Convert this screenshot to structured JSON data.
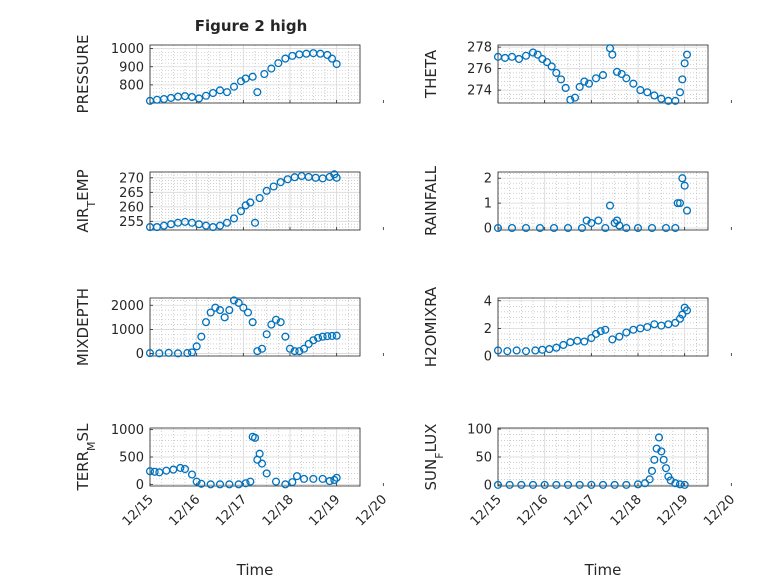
{
  "figure_title": "Figure 2 high",
  "colors": {
    "marker": "#0072BD",
    "axis": "#262626",
    "grid": "#d9d9d9",
    "minor_grid": "#b0b0b0"
  },
  "chart_data": [
    {
      "type": "scatter",
      "marker": "open-circle",
      "title": "Figure 2 high",
      "ylabel": "PRESSURE",
      "xlabel": "",
      "xlim": [
        "12/15",
        "12/19.5"
      ],
      "ylim": [
        700,
        1020
      ],
      "yticks": [
        800,
        900,
        1000
      ],
      "xticks": [
        "12/15",
        "12/16",
        "12/17",
        "12/18",
        "12/19",
        "12/20"
      ],
      "x_domain_days": [
        0,
        4.5
      ],
      "show_xticklabels": false,
      "grid": true,
      "minor_grid": true,
      "series": [
        {
          "x": [
            0,
            0.15,
            0.3,
            0.45,
            0.6,
            0.75,
            0.9,
            1.05,
            1.2,
            1.35,
            1.5,
            1.65,
            1.8,
            1.95,
            2.05,
            2.2,
            2.3,
            2.45,
            2.6,
            2.75,
            2.9,
            3.05,
            3.2,
            3.35,
            3.5,
            3.65,
            3.8,
            3.9,
            4.0
          ],
          "y": [
            712,
            718,
            722,
            728,
            735,
            738,
            733,
            725,
            740,
            755,
            770,
            760,
            790,
            820,
            835,
            845,
            760,
            860,
            890,
            920,
            945,
            960,
            968,
            972,
            975,
            972,
            965,
            945,
            915
          ]
        }
      ]
    },
    {
      "type": "scatter",
      "marker": "open-circle",
      "ylabel": "THETA",
      "xlabel": "",
      "xlim": [
        "12/15",
        "12/19.5"
      ],
      "ylim": [
        272.8,
        278.2
      ],
      "yticks": [
        274,
        276,
        278
      ],
      "xticks": [
        "12/15",
        "12/16",
        "12/17",
        "12/18",
        "12/19",
        "12/20"
      ],
      "x_domain_days": [
        0,
        4.5
      ],
      "show_xticklabels": false,
      "grid": true,
      "minor_grid": true,
      "series": [
        {
          "x": [
            0,
            0.15,
            0.3,
            0.45,
            0.6,
            0.75,
            0.85,
            0.95,
            1.05,
            1.15,
            1.25,
            1.35,
            1.45,
            1.55,
            1.65,
            1.75,
            1.85,
            1.95,
            2.1,
            2.25,
            2.4,
            2.45,
            2.55,
            2.65,
            2.75,
            2.9,
            3.05,
            3.2,
            3.35,
            3.5,
            3.65,
            3.8,
            3.9,
            3.95,
            4.0,
            4.05
          ],
          "y": [
            277.1,
            277.0,
            277.1,
            276.9,
            277.2,
            277.5,
            277.3,
            276.9,
            276.6,
            276.2,
            275.6,
            275.0,
            274.2,
            273.1,
            273.3,
            274.3,
            274.8,
            274.6,
            275.1,
            275.4,
            277.9,
            277.3,
            275.7,
            275.5,
            275.1,
            274.6,
            274.0,
            273.8,
            273.5,
            273.2,
            273.0,
            273.0,
            273.8,
            275.0,
            276.5,
            277.3
          ]
        }
      ]
    },
    {
      "type": "scatter",
      "marker": "open-circle",
      "ylabel": "AIR_TEMP",
      "xlabel": "",
      "xlim": [
        "12/15",
        "12/19.5"
      ],
      "ylim": [
        252,
        272
      ],
      "yticks": [
        255,
        260,
        265,
        270
      ],
      "xticks": [
        "12/15",
        "12/16",
        "12/17",
        "12/18",
        "12/19",
        "12/20"
      ],
      "x_domain_days": [
        0,
        4.5
      ],
      "show_xticklabels": false,
      "grid": true,
      "minor_grid": true,
      "series": [
        {
          "x": [
            0,
            0.15,
            0.3,
            0.45,
            0.6,
            0.75,
            0.9,
            1.05,
            1.2,
            1.35,
            1.5,
            1.65,
            1.8,
            1.95,
            2.05,
            2.15,
            2.25,
            2.35,
            2.5,
            2.65,
            2.8,
            2.95,
            3.1,
            3.25,
            3.4,
            3.55,
            3.7,
            3.85,
            3.95,
            4.0
          ],
          "y": [
            253,
            253,
            253.5,
            254,
            254.5,
            254.8,
            254.5,
            254,
            253.5,
            253,
            253.5,
            254.5,
            256,
            258.5,
            260.5,
            261.5,
            254.5,
            263,
            265.5,
            267,
            268.5,
            269.5,
            270.2,
            270.6,
            270.3,
            270,
            269.8,
            270.3,
            271.2,
            270
          ]
        }
      ]
    },
    {
      "type": "scatter",
      "marker": "open-circle",
      "ylabel": "RAINFALL",
      "xlabel": "",
      "xlim": [
        "12/15",
        "12/19.5"
      ],
      "ylim": [
        -0.08,
        2.25
      ],
      "yticks": [
        0,
        1,
        2
      ],
      "xticks": [
        "12/15",
        "12/16",
        "12/17",
        "12/18",
        "12/19",
        "12/20"
      ],
      "x_domain_days": [
        0,
        4.5
      ],
      "show_xticklabels": false,
      "grid": true,
      "minor_grid": true,
      "series": [
        {
          "x": [
            0,
            0.3,
            0.6,
            0.9,
            1.2,
            1.5,
            1.8,
            1.9,
            2.0,
            2.15,
            2.3,
            2.4,
            2.5,
            2.55,
            2.6,
            2.75,
            3.0,
            3.3,
            3.6,
            3.8,
            3.85,
            3.9,
            3.95,
            4.0,
            4.05
          ],
          "y": [
            0,
            0,
            0,
            0,
            0,
            0,
            0,
            0.3,
            0.2,
            0.3,
            0,
            0.9,
            0.2,
            0.3,
            0.1,
            0,
            0,
            0,
            0,
            0,
            1.0,
            1.0,
            2.0,
            1.7,
            0.7
          ]
        }
      ]
    },
    {
      "type": "scatter",
      "marker": "open-circle",
      "ylabel": "MIXDEPTH",
      "xlabel": "",
      "xlim": [
        "12/15",
        "12/19.5"
      ],
      "ylim": [
        -100,
        2300
      ],
      "yticks": [
        0,
        1000,
        2000
      ],
      "xticks": [
        "12/15",
        "12/16",
        "12/17",
        "12/18",
        "12/19",
        "12/20"
      ],
      "x_domain_days": [
        0,
        4.5
      ],
      "show_xticklabels": false,
      "grid": true,
      "minor_grid": true,
      "series": [
        {
          "x": [
            0,
            0.2,
            0.4,
            0.6,
            0.8,
            0.9,
            1.0,
            1.1,
            1.2,
            1.3,
            1.4,
            1.5,
            1.6,
            1.7,
            1.8,
            1.9,
            2.0,
            2.1,
            2.2,
            2.3,
            2.4,
            2.5,
            2.6,
            2.7,
            2.8,
            2.9,
            3.0,
            3.1,
            3.2,
            3.3,
            3.4,
            3.5,
            3.6,
            3.7,
            3.8,
            3.9,
            4.0
          ],
          "y": [
            20,
            10,
            30,
            10,
            20,
            50,
            300,
            700,
            1300,
            1700,
            1900,
            1800,
            1500,
            1800,
            2200,
            2100,
            1900,
            1700,
            1300,
            100,
            200,
            800,
            1200,
            1400,
            1300,
            700,
            200,
            100,
            100,
            200,
            400,
            550,
            650,
            700,
            720,
            730,
            740
          ]
        }
      ]
    },
    {
      "type": "scatter",
      "marker": "open-circle",
      "ylabel": "H2OMIXRA",
      "xlabel": "",
      "xlim": [
        "12/15",
        "12/19.5"
      ],
      "ylim": [
        0,
        4.2
      ],
      "yticks": [
        0,
        2,
        4
      ],
      "xticks": [
        "12/15",
        "12/16",
        "12/17",
        "12/18",
        "12/19",
        "12/20"
      ],
      "x_domain_days": [
        0,
        4.5
      ],
      "show_xticklabels": false,
      "grid": true,
      "minor_grid": true,
      "series": [
        {
          "x": [
            0,
            0.2,
            0.4,
            0.6,
            0.8,
            0.95,
            1.1,
            1.25,
            1.4,
            1.55,
            1.7,
            1.85,
            2.0,
            2.1,
            2.2,
            2.3,
            2.45,
            2.6,
            2.75,
            2.9,
            3.05,
            3.2,
            3.35,
            3.5,
            3.65,
            3.8,
            3.9,
            3.95,
            4.0,
            4.05
          ],
          "y": [
            0.4,
            0.35,
            0.4,
            0.35,
            0.4,
            0.45,
            0.5,
            0.6,
            0.8,
            1.0,
            1.1,
            1.05,
            1.3,
            1.6,
            1.8,
            1.9,
            1.2,
            1.4,
            1.7,
            1.9,
            2.0,
            2.1,
            2.3,
            2.2,
            2.3,
            2.4,
            2.7,
            3.0,
            3.5,
            3.3
          ]
        }
      ]
    },
    {
      "type": "scatter",
      "marker": "open-circle",
      "ylabel": "TERR_MSL",
      "xlabel": "Time",
      "xlim": [
        "12/15",
        "12/19.5"
      ],
      "ylim": [
        -30,
        1030
      ],
      "yticks": [
        0,
        500,
        1000
      ],
      "xticks": [
        "12/15",
        "12/16",
        "12/17",
        "12/18",
        "12/19",
        "12/20"
      ],
      "x_domain_days": [
        0,
        4.5
      ],
      "show_xticklabels": true,
      "grid": true,
      "minor_grid": true,
      "series": [
        {
          "x": [
            0,
            0.1,
            0.2,
            0.35,
            0.5,
            0.65,
            0.75,
            0.9,
            1.0,
            1.1,
            1.3,
            1.5,
            1.7,
            1.9,
            2.05,
            2.15,
            2.2,
            2.25,
            2.3,
            2.35,
            2.4,
            2.5,
            2.7,
            2.9,
            3.05,
            3.15,
            3.3,
            3.5,
            3.7,
            3.85,
            3.95,
            4.0
          ],
          "y": [
            240,
            230,
            220,
            250,
            270,
            300,
            280,
            180,
            50,
            10,
            0,
            0,
            0,
            0,
            20,
            50,
            870,
            850,
            450,
            560,
            380,
            200,
            50,
            0,
            40,
            150,
            100,
            100,
            100,
            60,
            80,
            120
          ]
        }
      ]
    },
    {
      "type": "scatter",
      "marker": "open-circle",
      "ylabel": "SUN_FLUX",
      "xlabel": "Time",
      "xlim": [
        "12/15",
        "12/19.5"
      ],
      "ylim": [
        -2,
        102
      ],
      "yticks": [
        0,
        50,
        100
      ],
      "xticks": [
        "12/15",
        "12/16",
        "12/17",
        "12/18",
        "12/19",
        "12/20"
      ],
      "x_domain_days": [
        0,
        4.5
      ],
      "show_xticklabels": true,
      "grid": true,
      "minor_grid": true,
      "series": [
        {
          "x": [
            0,
            0.25,
            0.5,
            0.75,
            1.0,
            1.25,
            1.5,
            1.75,
            2.0,
            2.25,
            2.5,
            2.75,
            3.0,
            3.15,
            3.25,
            3.3,
            3.35,
            3.4,
            3.45,
            3.5,
            3.55,
            3.6,
            3.65,
            3.7,
            3.8,
            3.9,
            4.0
          ],
          "y": [
            0,
            0,
            0,
            0,
            0,
            0,
            0,
            0,
            0,
            0,
            0,
            0,
            1,
            3,
            10,
            25,
            45,
            65,
            85,
            60,
            45,
            30,
            15,
            8,
            3,
            1,
            0
          ]
        }
      ]
    }
  ],
  "ylabel_parts": [
    {
      "base": "PRESSURE",
      "sub": "",
      "tail": ""
    },
    {
      "base": "THETA",
      "sub": "",
      "tail": ""
    },
    {
      "base": "AIR",
      "sub": "T",
      "tail": "EMP"
    },
    {
      "base": "RAINFALL",
      "sub": "",
      "tail": ""
    },
    {
      "base": "MIXDEPTH",
      "sub": "",
      "tail": ""
    },
    {
      "base": "H2OMIXRA",
      "sub": "",
      "tail": ""
    },
    {
      "base": "TERR",
      "sub": "M",
      "tail": "SL"
    },
    {
      "base": "SUN",
      "sub": "F",
      "tail": "LUX"
    }
  ]
}
